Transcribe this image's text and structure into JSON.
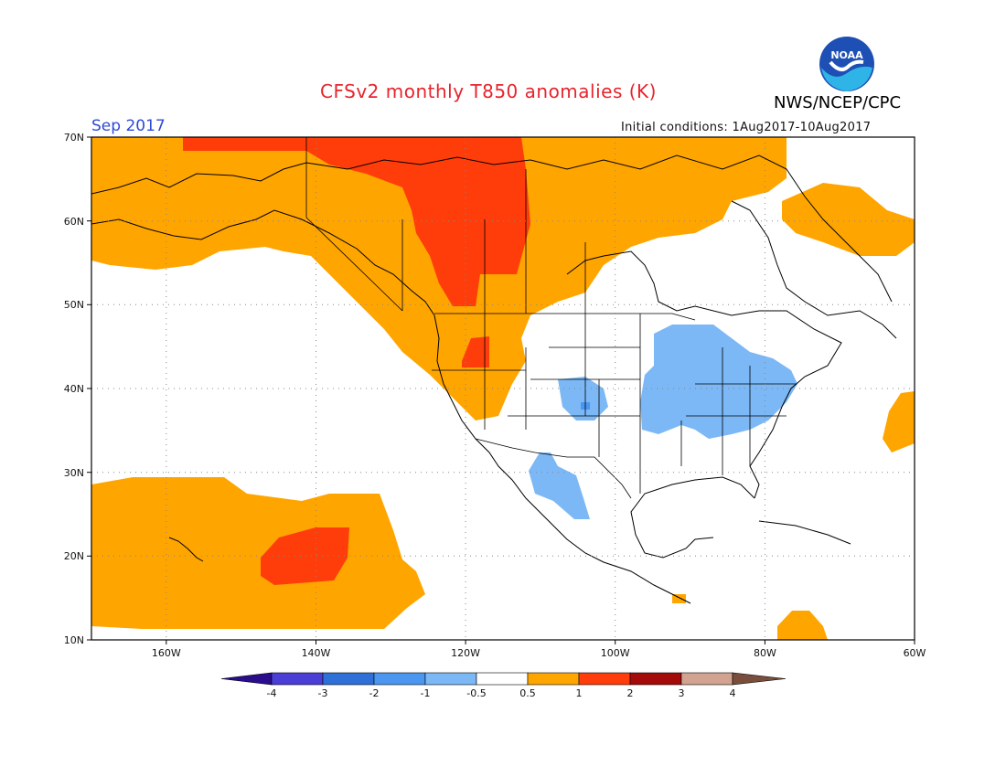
{
  "header": {
    "title": "CFSv2 monthly T850 anomalies (K)",
    "agency": "NWS/NCEP/CPC",
    "month": "Sep 2017",
    "initial_conditions": "Initial conditions: 1Aug2017-10Aug2017",
    "logo_text": "NOAA"
  },
  "axes": {
    "lat_ticks": [
      "70N",
      "60N",
      "50N",
      "40N",
      "30N",
      "20N",
      "10N"
    ],
    "lon_ticks": [
      "160W",
      "140W",
      "120W",
      "100W",
      "80W",
      "60W"
    ],
    "lat_range": [
      10,
      70
    ],
    "lon_range": [
      -170,
      -60
    ],
    "grid": "dotted"
  },
  "legend": {
    "labels": [
      "-4",
      "-3",
      "-2",
      "-1",
      "-0.5",
      "0.5",
      "1",
      "2",
      "3",
      "4"
    ],
    "colors": [
      "#2a0d8c",
      "#4a3ed6",
      "#2f6fd8",
      "#4a96f0",
      "#7cb8f5",
      "#ffffff",
      "#ffa500",
      "#ff3d0a",
      "#a50a0a",
      "#d2a390",
      "#7a4e3c"
    ]
  },
  "colors": {
    "warm_1": "#ffa500",
    "warm_2": "#ff3d0a",
    "cool_1": "#7cb8f5",
    "cool_2": "#4a96f0",
    "title": "#e8242c",
    "month": "#2f49d6"
  }
}
